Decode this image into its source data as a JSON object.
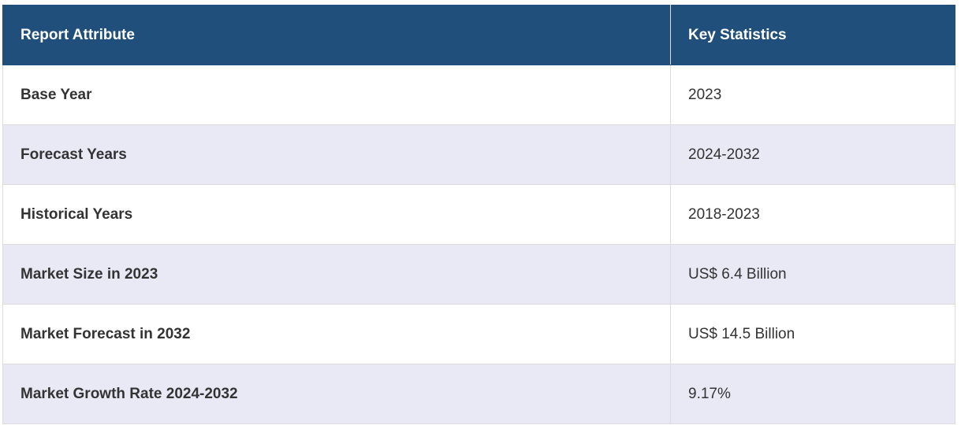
{
  "table": {
    "headers": [
      "Report Attribute",
      "Key Statistics"
    ],
    "rows": [
      [
        "Base Year",
        "2023"
      ],
      [
        "Forecast Years",
        "2024-2032"
      ],
      [
        "Historical Years",
        "2018-2023"
      ],
      [
        "Market Size in 2023",
        "US$ 6.4 Billion"
      ],
      [
        "Market Forecast in 2032",
        "US$ 14.5 Billion"
      ],
      [
        "Market Growth Rate 2024-2032",
        "9.17%"
      ]
    ]
  }
}
